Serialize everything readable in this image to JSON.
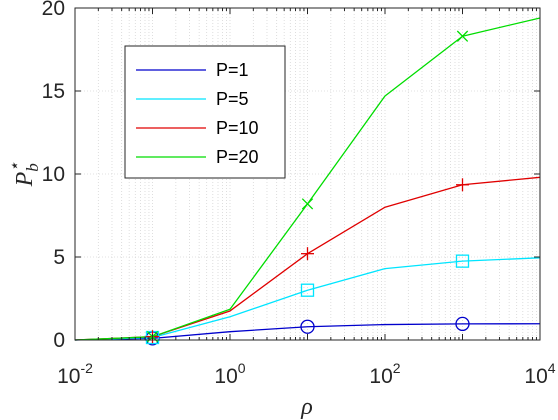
{
  "chart_data": {
    "type": "line",
    "x_scale": "log",
    "xlim": [
      0.01,
      10000
    ],
    "ylim": [
      0,
      20
    ],
    "xlabel": "ρ",
    "ylabel": "P",
    "ylabel_sub": "b",
    "ylabel_sup": "⋆",
    "x_ticks": [
      {
        "base": "10",
        "exp": "-2",
        "value": 0.01
      },
      {
        "base": "10",
        "exp": "0",
        "value": 1
      },
      {
        "base": "10",
        "exp": "2",
        "value": 100
      },
      {
        "base": "10",
        "exp": "4",
        "value": 10000
      }
    ],
    "y_ticks": [
      {
        "label": "0",
        "value": 0
      },
      {
        "label": "5",
        "value": 5
      },
      {
        "label": "10",
        "value": 10
      },
      {
        "label": "15",
        "value": 15
      },
      {
        "label": "20",
        "value": 20
      }
    ],
    "grid": true,
    "legend_position": "top-left",
    "x": [
      0.01,
      0.1,
      1,
      10,
      100,
      1000,
      10000
    ],
    "series": [
      {
        "name": "P=1",
        "color": "#0000cc",
        "marker": "circle",
        "values": [
          0,
          0.1,
          0.5,
          0.8,
          0.93,
          0.97,
          0.98
        ]
      },
      {
        "name": "P=5",
        "color": "#00e5ff",
        "marker": "square",
        "values": [
          0,
          0.15,
          1.4,
          3.0,
          4.3,
          4.75,
          4.95
        ]
      },
      {
        "name": "P=10",
        "color": "#e00000",
        "marker": "plus",
        "values": [
          0,
          0.2,
          1.75,
          5.2,
          8.0,
          9.35,
          9.8
        ]
      },
      {
        "name": "P=20",
        "color": "#00dd00",
        "marker": "x",
        "values": [
          0,
          0.2,
          1.85,
          8.2,
          14.7,
          18.3,
          19.4
        ]
      }
    ],
    "marker_x": [
      0.1,
      10,
      1000
    ]
  }
}
